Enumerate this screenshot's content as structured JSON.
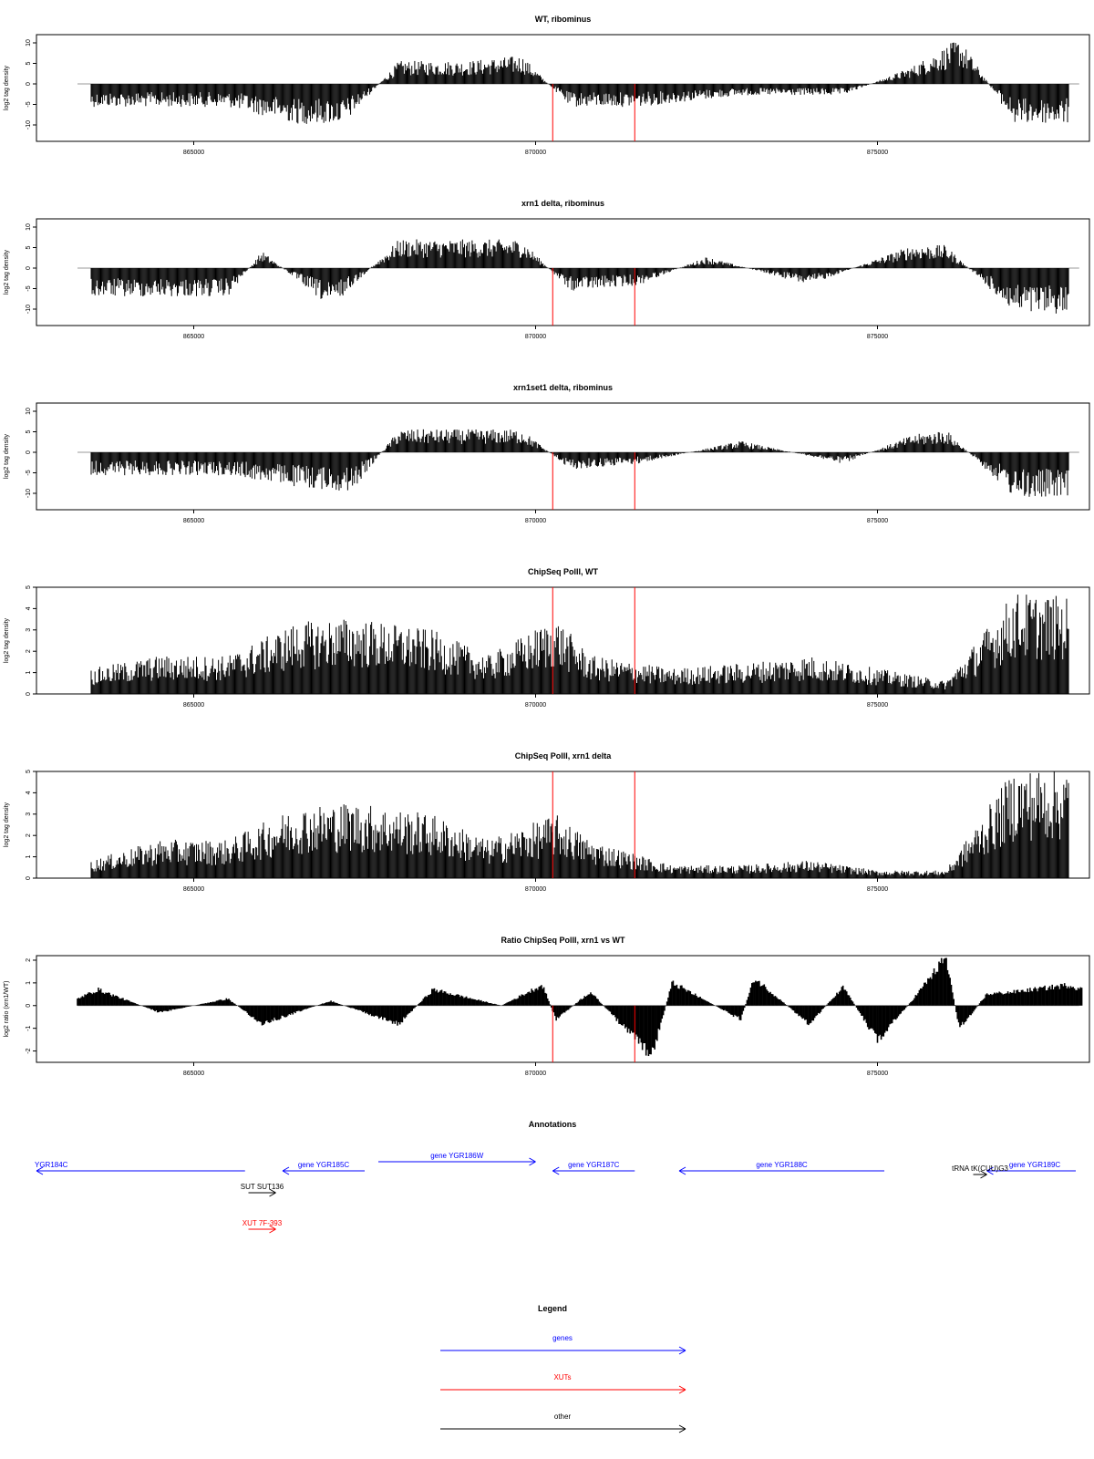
{
  "colors": {
    "gene": "#0000ff",
    "xut": "#ff0000",
    "other": "#000000",
    "marker": "#ff0000",
    "bars": "#000000",
    "baseline": "#999999"
  },
  "x_ticks": [
    865000,
    870000,
    875000
  ],
  "markers": [
    870250,
    871450
  ],
  "x_domain": [
    862700,
    878100
  ],
  "chart_data": [
    {
      "type": "bar",
      "title": "WT, ribominus",
      "ylabel": "log2 tag density",
      "ylim": [
        -14,
        12
      ],
      "yticks": [
        10,
        5,
        0,
        -5,
        -10
      ],
      "x": [
        863500,
        864500,
        865500,
        866500,
        867200,
        868000,
        869000,
        869800,
        870500,
        871500,
        873000,
        874500,
        875500,
        876200,
        877000,
        877800
      ],
      "values": [
        -4,
        -4,
        -4,
        -7,
        -7,
        4,
        4,
        5,
        -4,
        -4,
        -2,
        -2,
        3,
        8,
        -7,
        -7
      ]
    },
    {
      "type": "bar",
      "title": "xrn1 delta, ribominus",
      "ylabel": "log2 tag density",
      "ylim": [
        -14,
        12
      ],
      "yticks": [
        10,
        5,
        0,
        -5,
        -10
      ],
      "x": [
        863500,
        864500,
        865500,
        866000,
        867000,
        868000,
        869000,
        869800,
        870500,
        871500,
        872500,
        874000,
        875500,
        876000,
        877000,
        877800
      ],
      "values": [
        -5,
        -5,
        -5,
        3,
        -7,
        5,
        5,
        5,
        -4,
        -3,
        2,
        -3,
        4,
        4,
        -8,
        -8
      ]
    },
    {
      "type": "bar",
      "title": "xrn1set1 delta, ribominus",
      "ylabel": "log2 tag density",
      "ylim": [
        -14,
        12
      ],
      "yticks": [
        10,
        5,
        0,
        -5,
        -10
      ],
      "x": [
        863500,
        864500,
        865500,
        866500,
        867300,
        868000,
        869000,
        869800,
        870500,
        871500,
        873000,
        874500,
        875500,
        876000,
        877000,
        877800
      ],
      "values": [
        -4,
        -4,
        -4,
        -6,
        -7,
        4,
        4,
        4,
        -3,
        -2,
        2,
        -2,
        3,
        4,
        -8,
        -8
      ]
    },
    {
      "type": "bar",
      "title": "ChipSeq PolII, WT",
      "ylabel": "log2 tag density",
      "ylim": [
        0,
        5
      ],
      "yticks": [
        0,
        1,
        2,
        3,
        4,
        5
      ],
      "x": [
        863500,
        864500,
        865500,
        866500,
        867300,
        868500,
        869300,
        870300,
        870800,
        872000,
        873000,
        874000,
        875000,
        876000,
        877000,
        877800
      ],
      "values": [
        1,
        1.5,
        1.5,
        2.8,
        3,
        2.5,
        1.5,
        3,
        1.5,
        1,
        1.2,
        1.5,
        1,
        0.5,
        4,
        3.8
      ]
    },
    {
      "type": "bar",
      "title": "ChipSeq PolII, xrn1 delta",
      "ylabel": "log2 tag density",
      "ylim": [
        0,
        5
      ],
      "yticks": [
        0,
        1,
        2,
        3,
        4,
        5
      ],
      "x": [
        863500,
        864500,
        865500,
        866500,
        867300,
        868500,
        869300,
        870300,
        870800,
        872000,
        873000,
        874000,
        875000,
        876000,
        877000,
        877800
      ],
      "values": [
        0.7,
        1.5,
        1.5,
        2.8,
        3,
        2.5,
        1.5,
        2.5,
        1.5,
        0.5,
        0.5,
        0.7,
        0.3,
        0.3,
        4.3,
        4.3
      ]
    },
    {
      "type": "area",
      "title": "Ratio ChipSeq PolII, xrn1 vs WT",
      "ylabel": "log2 ratio (xrn1/WT)",
      "ylim": [
        -2.5,
        2.2
      ],
      "yticks": [
        2,
        1,
        0,
        -1,
        -2
      ],
      "x": [
        863300,
        863600,
        864500,
        865500,
        866000,
        867000,
        868000,
        868500,
        869500,
        870100,
        870300,
        870800,
        871700,
        872000,
        873000,
        873200,
        874000,
        874500,
        875000,
        875500,
        876000,
        876200,
        876600,
        877000,
        877800,
        878000
      ],
      "values": [
        0.3,
        0.7,
        -0.3,
        0.3,
        -0.8,
        0.2,
        -0.8,
        0.7,
        0,
        0.9,
        -0.6,
        0.6,
        -2.2,
        1,
        -0.6,
        1.2,
        -0.8,
        0.8,
        -1.5,
        0.2,
        2.1,
        -1,
        0.5,
        0.6,
        0.9,
        0.7
      ]
    }
  ],
  "annotations": {
    "title": "Annotations",
    "items": [
      {
        "label": "YGR184C",
        "kind": "gene",
        "x1": 862700,
        "x2": 865750,
        "dir": "left",
        "row": 0,
        "lx": 862700
      },
      {
        "label": "gene YGR185C",
        "kind": "gene",
        "x1": 866300,
        "x2": 867500,
        "dir": "left",
        "row": 0,
        "lx": 866900
      },
      {
        "label": "gene YGR186W",
        "kind": "gene",
        "x1": 867700,
        "x2": 870000,
        "dir": "right",
        "row": -1,
        "lx": 868850
      },
      {
        "label": "gene YGR187C",
        "kind": "gene",
        "x1": 870250,
        "x2": 871450,
        "dir": "left",
        "row": 0,
        "lx": 870850
      },
      {
        "label": "gene YGR188C",
        "kind": "gene",
        "x1": 872100,
        "x2": 875100,
        "dir": "left",
        "row": 0,
        "lx": 873600
      },
      {
        "label": "gene YGR189C",
        "kind": "gene",
        "x1": 876600,
        "x2": 877900,
        "dir": "left",
        "row": 0,
        "lx": 877300
      },
      {
        "label": "tRNA tK(CUU)G3",
        "kind": "other",
        "x1": 876400,
        "x2": 876600,
        "dir": "right",
        "row": 0.4,
        "lx": 876500
      },
      {
        "label": "SUT SUT136",
        "kind": "other",
        "x1": 865800,
        "x2": 866200,
        "dir": "right",
        "row": 2.4,
        "lx": 866000
      },
      {
        "label": "XUT 7F-393",
        "kind": "xut",
        "x1": 865800,
        "x2": 866200,
        "dir": "right",
        "row": 6.4,
        "lx": 866000
      }
    ]
  },
  "legend": {
    "title": "Legend",
    "items": [
      {
        "label": "genes",
        "kind": "gene"
      },
      {
        "label": "XUTs",
        "kind": "xut"
      },
      {
        "label": "other",
        "kind": "other"
      }
    ]
  }
}
